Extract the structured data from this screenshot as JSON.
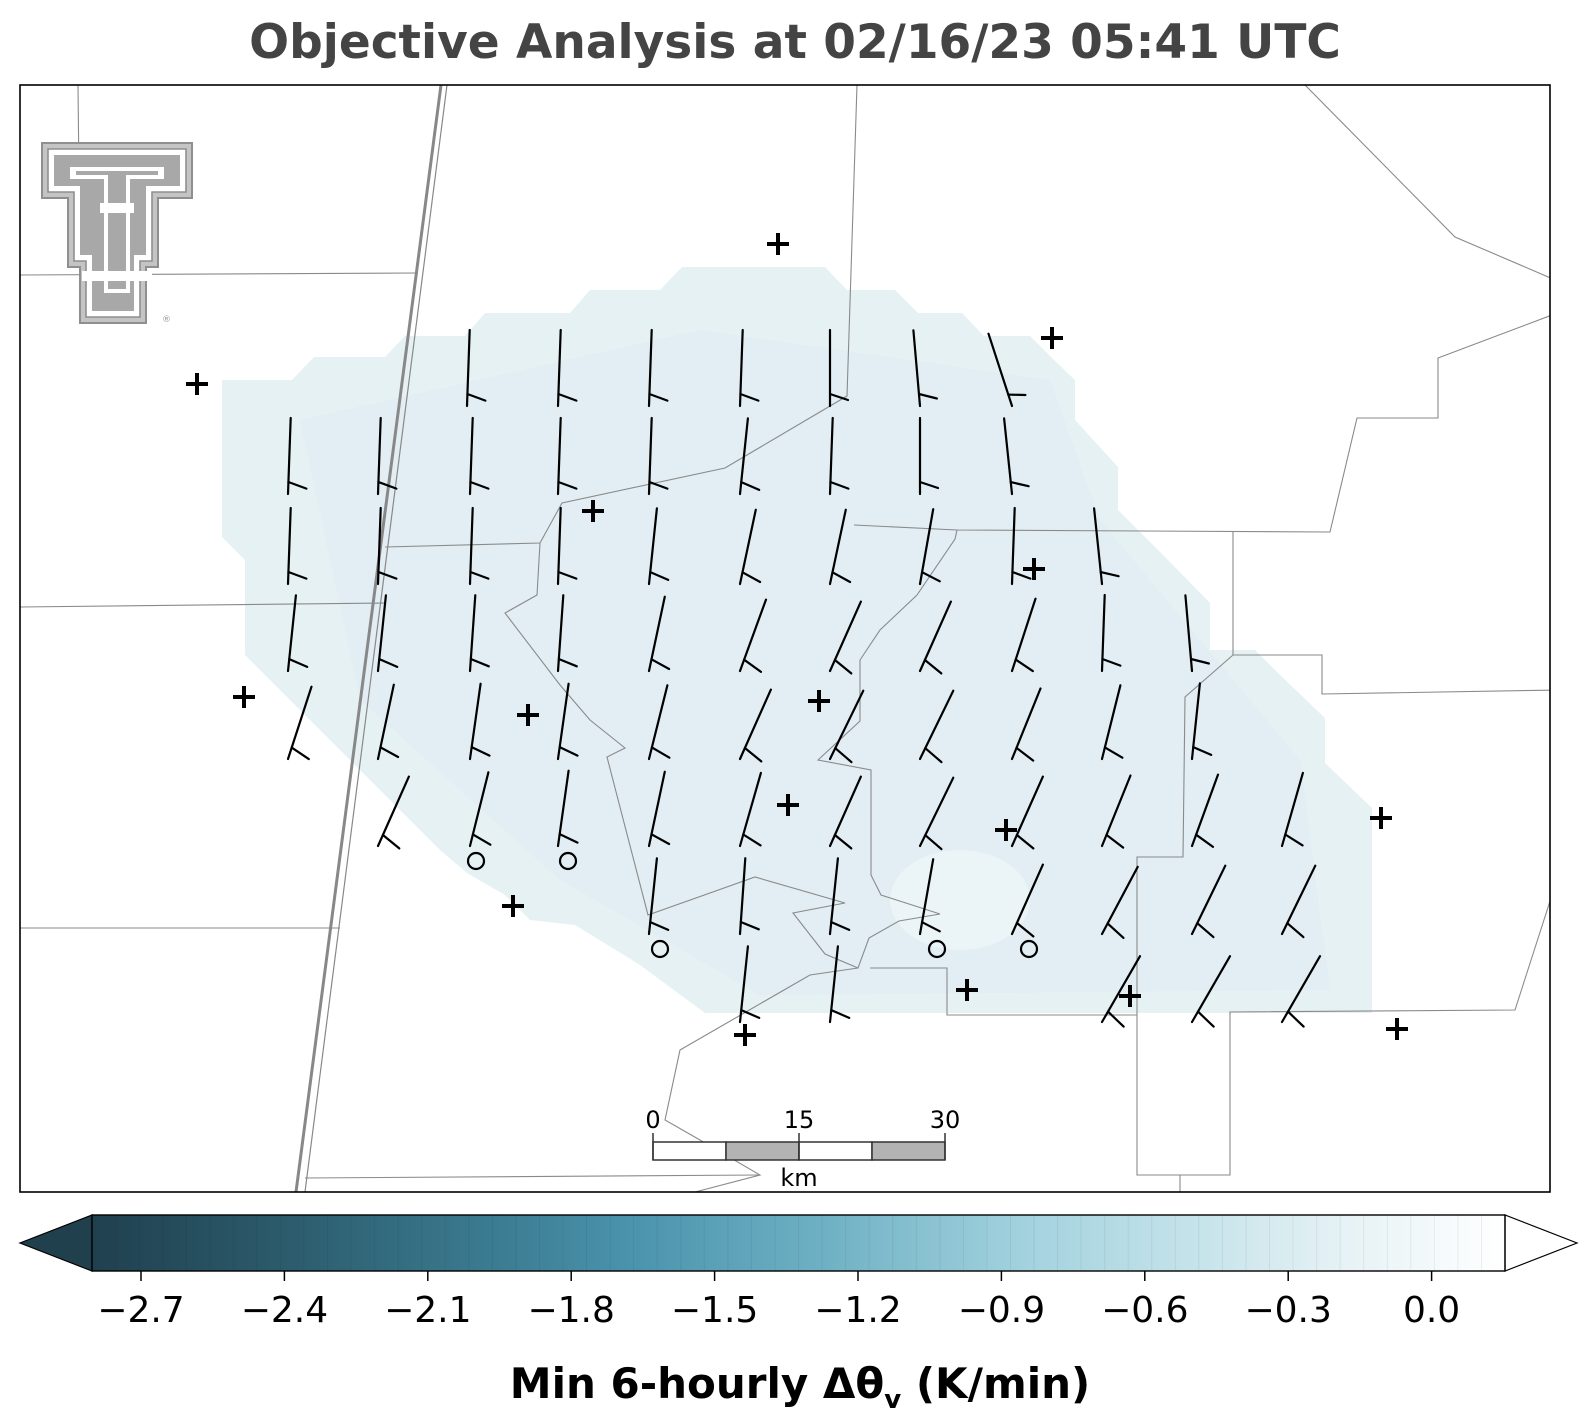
{
  "title": "Objective Analysis at 02/16/23 05:41 UTC",
  "map": {
    "logo": "texas-tech-double-t-logo",
    "registered_mark": "®",
    "symbols": {
      "station_plus": "+",
      "calm_circle": "o"
    },
    "fill_color": "#e6f1f4"
  },
  "scale_bar": {
    "labels": [
      "0",
      "15",
      "30"
    ],
    "unit": "km"
  },
  "colorbar": {
    "ticks": [
      "−2.7",
      "−2.4",
      "−2.1",
      "−1.8",
      "−1.5",
      "−1.2",
      "−0.9",
      "−0.6",
      "−0.3",
      "0.0"
    ],
    "label_main": "Min 6-hourly Δθ",
    "label_sub": "v",
    "label_unit": " (K/min)",
    "colors": [
      "#21404d",
      "#4891aa",
      "#a9d6e2",
      "#ffffff"
    ],
    "extend": "both"
  }
}
